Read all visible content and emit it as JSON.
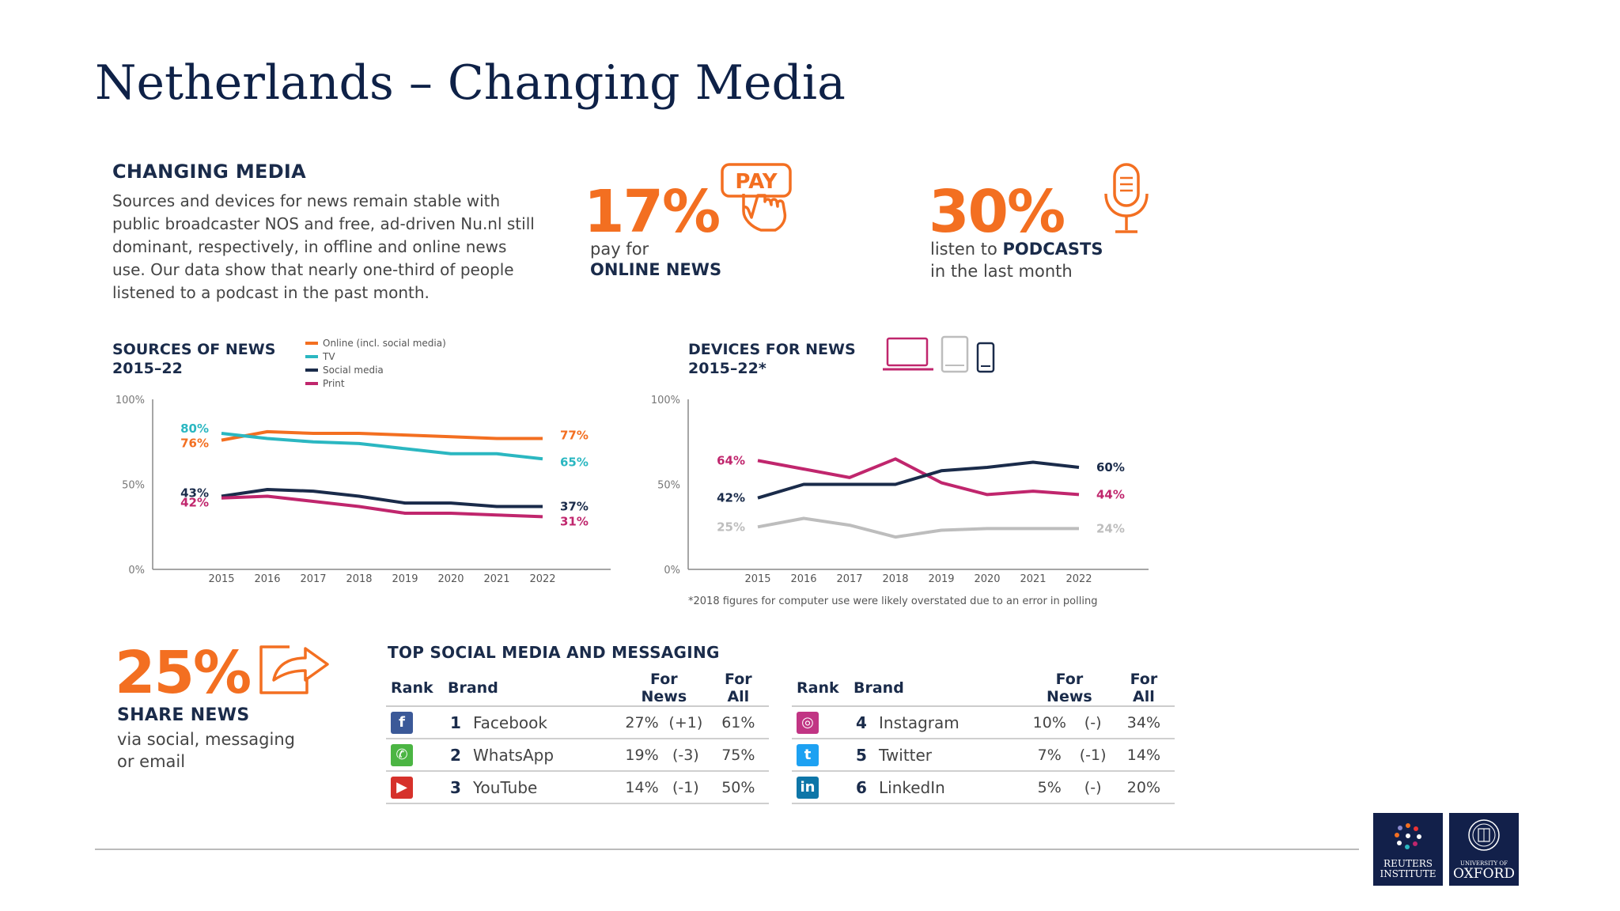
{
  "slide": {
    "title": "Netherlands – Changing Media"
  },
  "intro": {
    "heading": "CHANGING MEDIA",
    "body": "Sources and devices for news remain stable with public broadcaster NOS and free, ad-driven Nu.nl still dominant, respectively, in offline and online news use. Our data show that nearly one-third of people listened to a podcast in the past month."
  },
  "pay_stat": {
    "value": "17%",
    "icon_label": "PAY",
    "line1": "pay for",
    "line2": "ONLINE NEWS",
    "icon": "pay-hand-icon"
  },
  "podcast_stat": {
    "value": "30%",
    "line1_pre": "listen to",
    "line1_bold": "PODCASTS",
    "line2": "in the last month",
    "icon": "microphone-icon"
  },
  "share_stat": {
    "value": "25%",
    "heading": "SHARE NEWS",
    "line1": "via social, messaging",
    "line2": "or email",
    "icon": "share-arrow-icon"
  },
  "colors": {
    "orange": "#f36f21",
    "teal": "#2bb7c1",
    "navy": "#1a2b4a",
    "magenta": "#c0266d",
    "grey": "#bdbdbd"
  },
  "chart_data": [
    {
      "type": "line",
      "title": "SOURCES OF NEWS",
      "subtitle": "2015–22",
      "x": [
        2015,
        2016,
        2017,
        2018,
        2019,
        2020,
        2021,
        2022
      ],
      "ylim": [
        0,
        100
      ],
      "yticks": [
        "0%",
        "50%",
        "100%"
      ],
      "legend_position": "top",
      "series": [
        {
          "name": "Online (incl. social media)",
          "color": "#f36f21",
          "values": [
            76,
            81,
            80,
            80,
            79,
            78,
            77,
            77
          ],
          "start_label": "76%",
          "end_label": "77%"
        },
        {
          "name": "TV",
          "color": "#2bb7c1",
          "values": [
            80,
            77,
            75,
            74,
            71,
            68,
            68,
            65
          ],
          "start_label": "80%",
          "end_label": "65%"
        },
        {
          "name": "Social media",
          "color": "#1a2b4a",
          "values": [
            43,
            47,
            46,
            43,
            39,
            39,
            37,
            37
          ],
          "start_label": "43%",
          "end_label": "37%"
        },
        {
          "name": "Print",
          "color": "#c0266d",
          "values": [
            42,
            43,
            40,
            37,
            33,
            33,
            32,
            31
          ],
          "start_label": "42%",
          "end_label": "31%"
        }
      ]
    },
    {
      "type": "line",
      "title": "DEVICES FOR NEWS",
      "subtitle": "2015–22*",
      "footnote": "*2018 figures for computer use were likely overstated due to an error in polling",
      "x": [
        2015,
        2016,
        2017,
        2018,
        2019,
        2020,
        2021,
        2022
      ],
      "ylim": [
        0,
        100
      ],
      "yticks": [
        "0%",
        "50%",
        "100%"
      ],
      "legend_icons": [
        "laptop-icon",
        "tablet-icon",
        "smartphone-icon"
      ],
      "series": [
        {
          "color": "#c0266d",
          "values": [
            64,
            59,
            54,
            65,
            51,
            44,
            46,
            44
          ],
          "start_label": "64%",
          "end_label": "44%"
        },
        {
          "color": "#1a2b4a",
          "values": [
            42,
            50,
            50,
            50,
            58,
            60,
            63,
            60
          ],
          "start_label": "42%",
          "end_label": "60%"
        },
        {
          "color": "#bdbdbd",
          "values": [
            25,
            30,
            26,
            19,
            23,
            24,
            24,
            24
          ],
          "start_label": "25%",
          "end_label": "24%"
        }
      ]
    }
  ],
  "top_social": {
    "title": "TOP SOCIAL MEDIA AND MESSAGING",
    "headers": {
      "rank": "Rank",
      "brand": "Brand",
      "for_news": "For News",
      "for_all": "For All"
    },
    "left": [
      {
        "rank": "1",
        "brand": "Facebook",
        "icon": "facebook-icon",
        "glyph": "f",
        "color": "#3b5998",
        "for_news": "27%",
        "change": "(+1)",
        "for_all": "61%"
      },
      {
        "rank": "2",
        "brand": "WhatsApp",
        "icon": "whatsapp-icon",
        "glyph": "✆",
        "color": "#4bb543",
        "for_news": "19%",
        "change": "(-3)",
        "for_all": "75%"
      },
      {
        "rank": "3",
        "brand": "YouTube",
        "icon": "youtube-icon",
        "glyph": "▶",
        "color": "#d6312b",
        "for_news": "14%",
        "change": "(-1)",
        "for_all": "50%"
      }
    ],
    "right": [
      {
        "rank": "4",
        "brand": "Instagram",
        "icon": "instagram-icon",
        "glyph": "◎",
        "color": "#c13584",
        "for_news": "10%",
        "change": "(-)",
        "for_all": "34%"
      },
      {
        "rank": "5",
        "brand": "Twitter",
        "icon": "twitter-icon",
        "glyph": "t",
        "color": "#1da1f2",
        "for_news": "7%",
        "change": "(-1)",
        "for_all": "14%"
      },
      {
        "rank": "6",
        "brand": "LinkedIn",
        "icon": "linkedin-icon",
        "glyph": "in",
        "color": "#0e76a8",
        "for_news": "5%",
        "change": "(-)",
        "for_all": "20%"
      }
    ]
  },
  "logos": {
    "reuters": {
      "line1": "REUTERS",
      "line2": "INSTITUTE"
    },
    "oxford": {
      "line1": "UNIVERSITY OF",
      "line2": "OXFORD"
    }
  }
}
